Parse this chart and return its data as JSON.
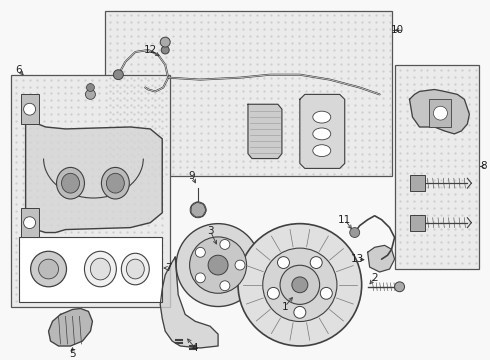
{
  "fig_width": 4.9,
  "fig_height": 3.6,
  "dpi": 100,
  "bg_color": "#f8f8f8",
  "line_color": "#404040",
  "text_color": "#222222",
  "box_edge": "#666666",
  "box_fill": "#eeeeee",
  "dot_color": "#cccccc",
  "white": "#ffffff",
  "gray_light": "#d0d0d0",
  "gray_mid": "#aaaaaa",
  "gray_dark": "#888888"
}
